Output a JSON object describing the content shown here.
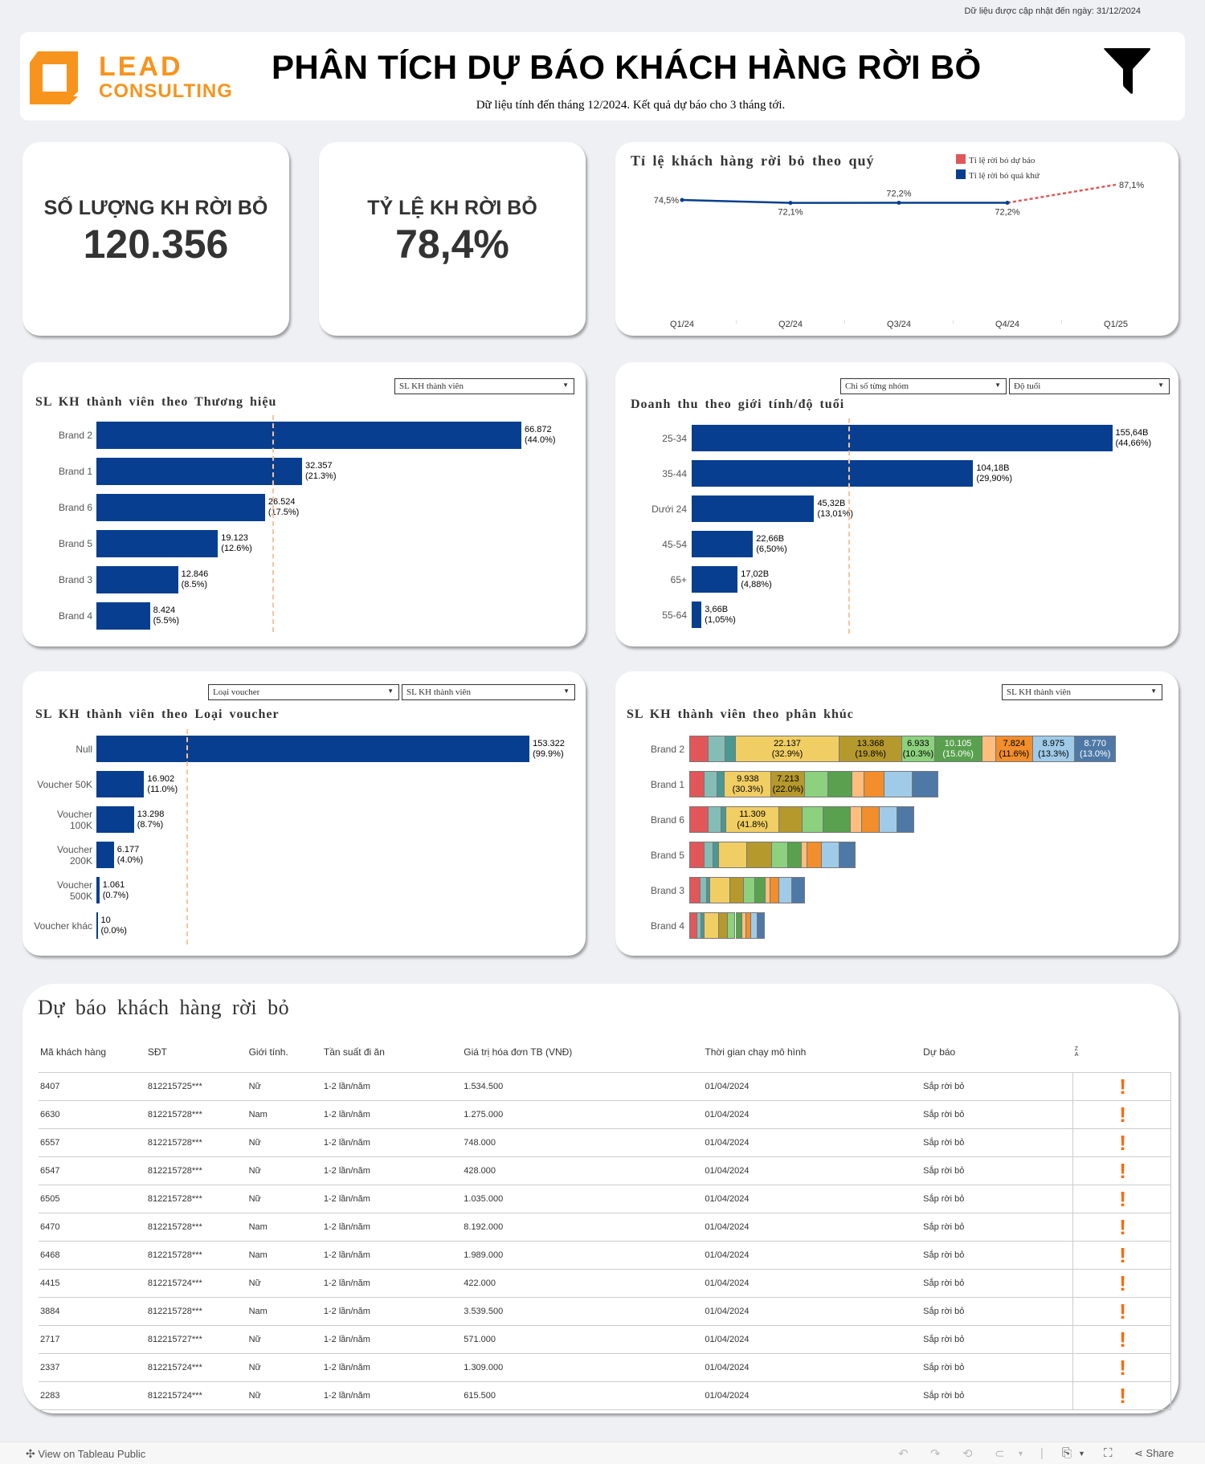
{
  "update_note": "Dữ liệu được cập nhật đến ngày: 31/12/2024",
  "header": {
    "logo_line1": "LEAD",
    "logo_line2": "CONSULTING",
    "title": "PHÂN TÍCH DỰ BÁO KHÁCH HÀNG RỜI BỎ",
    "subtitle": "Dữ liệu tính đến tháng 12/2024. Kết quả dự báo cho 3 tháng tới.",
    "filter_icon": "filter-icon"
  },
  "kpis": [
    {
      "label": "SỐ LƯỢNG KH RỜI BỎ",
      "value": "120.356"
    },
    {
      "label": "TỶ LỆ KH RỜI BỎ",
      "value": "78,4%"
    }
  ],
  "colors": {
    "bar": "#073e8f",
    "forecast": "#e15759",
    "reference": "#f8c49a",
    "alert": "#fa6a0a",
    "brand_orange": "#f7941d",
    "segments": [
      "#e15759",
      "#86bcb6",
      "#499894",
      "#f1ce63",
      "#b6992d",
      "#8cd17d",
      "#59a14f",
      "#ffbe7d",
      "#f28e2b",
      "#a0cbe8",
      "#4e79a7"
    ]
  },
  "chart_data": [
    {
      "type": "line",
      "title": "Tỉ lệ khách hàng rời bỏ theo quý",
      "legend": [
        {
          "name": "Tỉ lệ rời bỏ dự báo",
          "color": "#e15759"
        },
        {
          "name": "Tỉ lệ rời bỏ quá khứ",
          "color": "#073e8f"
        }
      ],
      "legend_position": "top-right",
      "categories": [
        "Q1/24",
        "Q2/24",
        "Q3/24",
        "Q4/24",
        "Q1/25"
      ],
      "series": [
        {
          "name": "Tỉ lệ rời bỏ quá khứ",
          "values": [
            74.5,
            72.1,
            72.2,
            72.2,
            null
          ],
          "labels": [
            "74,5%",
            "72,1%",
            "72,2%",
            "72,2%",
            ""
          ]
        },
        {
          "name": "Tỉ lệ rời bỏ dự báo",
          "values": [
            null,
            null,
            null,
            72.2,
            87.1
          ],
          "labels": [
            "",
            "",
            "",
            "",
            "87,1%"
          ]
        }
      ],
      "ylim": [
        0,
        100
      ],
      "grid": false
    },
    {
      "type": "bar",
      "title": "SL KH thành viên theo Thương hiệu",
      "dropdowns": [
        "SL KH thành viên"
      ],
      "categories": [
        "Brand 2",
        "Brand 1",
        "Brand 6",
        "Brand 5",
        "Brand 3",
        "Brand 4"
      ],
      "values": [
        66872,
        32357,
        26524,
        19123,
        12846,
        8424
      ],
      "value_labels": [
        "66.872",
        "32.357",
        "26.524",
        "19.123",
        "12.846",
        "8.424"
      ],
      "pct_labels": [
        "(44.0%)",
        "(21.3%)",
        "(17.5%)",
        "(12.6%)",
        "(8.5%)",
        "(5.5%)"
      ],
      "reference_line": 27691,
      "xlim": [
        0,
        80900
      ]
    },
    {
      "type": "bar",
      "title": "Doanh thu theo giới tính/độ tuổi",
      "dropdowns": [
        "Chỉ số từng nhóm",
        "Độ tuổi"
      ],
      "categories": [
        "25-34",
        "35-44",
        "Dưới 24",
        "45-54",
        "65+",
        "55-64"
      ],
      "values": [
        155.64,
        104.18,
        45.32,
        22.66,
        17.02,
        3.66
      ],
      "value_labels": [
        "155,64B",
        "104,18B",
        "45,32B",
        "22,66B",
        "17,02B",
        "3,66B"
      ],
      "pct_labels": [
        "(44,66%)",
        "(29,90%)",
        "(13,01%)",
        "(6,50%)",
        "(4,88%)",
        "(1,05%)"
      ],
      "reference_line": 58.08,
      "xlim": [
        0,
        165
      ]
    },
    {
      "type": "bar",
      "title": "SL KH thành viên theo Loại voucher",
      "dropdowns": [
        "Loại voucher",
        "SL KH thành viên"
      ],
      "categories": [
        "Null",
        "Voucher 50K",
        "Voucher 100K",
        "Voucher 200K",
        "Voucher 500K",
        "Voucher khác"
      ],
      "values": [
        153322,
        16902,
        13298,
        6177,
        1061,
        10
      ],
      "value_labels": [
        "153.322",
        "16.902",
        "13.298",
        "6.177",
        "1.061",
        "10"
      ],
      "pct_labels": [
        "(99.9%)",
        "(11.0%)",
        "(8.7%)",
        "(4.0%)",
        "(0.7%)",
        "(0.0%)"
      ],
      "reference_line": 31795,
      "xlim": [
        0,
        186000
      ]
    },
    {
      "type": "bar",
      "stacked": true,
      "title": "SL KH thành viên theo phân khúc",
      "dropdowns": [
        "SL KH thành viên"
      ],
      "categories": [
        "Brand 2",
        "Brand 1",
        "Brand 6",
        "Brand 5",
        "Brand 3",
        "Brand 4"
      ],
      "segments": [
        {
          "values": [
            4010,
            3077,
            3977,
            3152,
            2176,
            1576
          ]
        },
        {
          "values": [
            3590,
            2777,
            2777,
            1876,
            1426,
            900
          ]
        },
        {
          "values": [
            2150,
            1576,
            976,
            1126,
            675,
            525
          ]
        },
        {
          "values": [
            22137,
            9938,
            11309,
            6078,
            4277,
            3152
          ],
          "labels": [
            "22.137\n(32.9%)",
            "9.938\n(30.3%)",
            "11.309\n(41.8%)",
            "",
            "",
            ""
          ]
        },
        {
          "values": [
            13368,
            7213,
            4878,
            5253,
            2852,
            1951
          ],
          "labels": [
            "13.368\n(19.8%)",
            "7.213\n(22.0%)",
            "",
            "",
            "",
            ""
          ]
        },
        {
          "values": [
            6933,
            4953,
            4502,
            3452,
            2551,
            1576
          ],
          "labels": [
            "6.933\n(10.3%)",
            "",
            "",
            "",
            "",
            ""
          ]
        },
        {
          "values": [
            10105,
            5028,
            5853,
            2852,
            2176,
            1501
          ],
          "labels": [
            "10.105\n(15.0%)",
            "",
            "",
            "",
            "",
            ""
          ]
        },
        {
          "values": [
            2990,
            2551,
            2401,
            1276,
            976,
            750
          ]
        },
        {
          "values": [
            7824,
            4352,
            3677,
            3077,
            1951,
            1051
          ],
          "labels": [
            "7.824\n(11.6%)",
            "",
            "",
            "",
            "",
            ""
          ]
        },
        {
          "values": [
            8975,
            5928,
            3827,
            3752,
            2701,
            1426
          ],
          "labels": [
            "8.975\n(13.3%)",
            "",
            "",
            "",
            "",
            ""
          ]
        },
        {
          "values": [
            8770,
            5478,
            3602,
            3377,
            2701,
            1501
          ],
          "labels": [
            "8.770\n(13.0%)",
            "",
            "",
            "",
            "",
            ""
          ]
        }
      ],
      "xlim": [
        0,
        95000
      ]
    }
  ],
  "table": {
    "title": "Dự báo khách hàng rời bỏ",
    "sort_icon": "sort-za-icon",
    "columns": [
      "Mã khách hàng",
      "SĐT",
      "Giới tính.",
      "Tần suất đi ăn",
      "Giá trị hóa đơn TB (VNĐ)",
      "Thời gian chạy mô hình",
      "Dự báo"
    ],
    "rows": [
      [
        "8407",
        "812215725***",
        "Nữ",
        "1-2 lần/năm",
        "1.534.500",
        "01/04/2024",
        "Sắp rời bỏ"
      ],
      [
        "6630",
        "812215728***",
        "Nam",
        "1-2 lần/năm",
        "1.275.000",
        "01/04/2024",
        "Sắp rời bỏ"
      ],
      [
        "6557",
        "812215728***",
        "Nữ",
        "1-2 lần/năm",
        "748.000",
        "01/04/2024",
        "Sắp rời bỏ"
      ],
      [
        "6547",
        "812215728***",
        "Nữ",
        "1-2 lần/năm",
        "428.000",
        "01/04/2024",
        "Sắp rời bỏ"
      ],
      [
        "6505",
        "812215728***",
        "Nữ",
        "1-2 lần/năm",
        "1.035.000",
        "01/04/2024",
        "Sắp rời bỏ"
      ],
      [
        "6470",
        "812215728***",
        "Nam",
        "1-2 lần/năm",
        "8.192.000",
        "01/04/2024",
        "Sắp rời bỏ"
      ],
      [
        "6468",
        "812215728***",
        "Nam",
        "1-2 lần/năm",
        "1.989.000",
        "01/04/2024",
        "Sắp rời bỏ"
      ],
      [
        "4415",
        "812215724***",
        "Nữ",
        "1-2 lần/năm",
        "422.000",
        "01/04/2024",
        "Sắp rời bỏ"
      ],
      [
        "3884",
        "812215728***",
        "Nam",
        "1-2 lần/năm",
        "3.539.500",
        "01/04/2024",
        "Sắp rời bỏ"
      ],
      [
        "2717",
        "812215727***",
        "Nữ",
        "1-2 lần/năm",
        "571.000",
        "01/04/2024",
        "Sắp rời bỏ"
      ],
      [
        "2337",
        "812215724***",
        "Nữ",
        "1-2 lần/năm",
        "1.309.000",
        "01/04/2024",
        "Sắp rời bỏ"
      ],
      [
        "2283",
        "812215724***",
        "Nữ",
        "1-2 lần/năm",
        "615.500",
        "01/04/2024",
        "Sắp rời bỏ"
      ]
    ],
    "alert_glyph": "!"
  },
  "footer": {
    "view_label": "View on Tableau Public",
    "share_label": "Share"
  }
}
